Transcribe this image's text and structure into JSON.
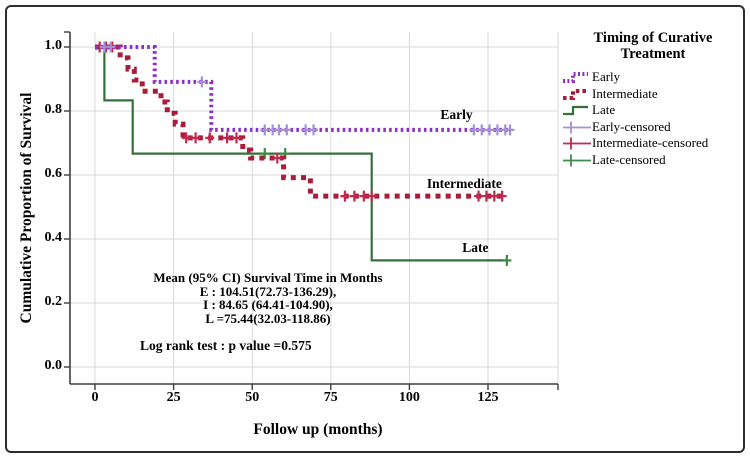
{
  "chart_data": {
    "type": "line",
    "subtype": "kaplan-meier-step",
    "title": "",
    "xlabel": "Follow up (months)",
    "ylabel": "Cumulative Proportion of Survival",
    "xlim": [
      -8,
      147
    ],
    "ylim": [
      -0.05,
      1.05
    ],
    "grid": true,
    "colors": {
      "grid": "#d9d9d9",
      "axis": "#3f3f3f",
      "text": "#000000"
    },
    "x_axis": {
      "ticks": [
        {
          "label": "0",
          "value": 0
        },
        {
          "label": "25",
          "value": 25
        },
        {
          "label": "50",
          "value": 50
        },
        {
          "label": "75",
          "value": 75
        },
        {
          "label": "100",
          "value": 100
        },
        {
          "label": "125",
          "value": 125
        }
      ]
    },
    "y_axis": {
      "ticks": [
        {
          "label": "1.0",
          "value": 1.0
        },
        {
          "label": "0.8",
          "value": 0.8
        },
        {
          "label": "0.6",
          "value": 0.6
        },
        {
          "label": "0.4",
          "value": 0.4
        },
        {
          "label": "0.2",
          "value": 0.2
        },
        {
          "label": "0.0",
          "value": 0.0
        }
      ]
    },
    "series": [
      {
        "name": "Late",
        "style": "solid",
        "color": "#35703a",
        "censor_color": "#3f8a48",
        "label": {
          "x": 121,
          "y": 0.372
        },
        "points": [
          [
            0,
            1.0
          ],
          [
            3,
            1.0
          ],
          [
            3,
            0.833
          ],
          [
            12,
            0.833
          ],
          [
            12,
            0.667
          ],
          [
            88,
            0.667
          ],
          [
            88,
            0.333
          ],
          [
            131,
            0.333
          ]
        ],
        "censored": [
          [
            54,
            0.667
          ],
          [
            60.5,
            0.667
          ],
          [
            131,
            0.333
          ]
        ]
      },
      {
        "name": "Intermediate",
        "style": "dashed",
        "color": "#a81e38",
        "censor_color": "#c22850",
        "label": {
          "x": 117.5,
          "y": 0.572
        },
        "points": [
          [
            0,
            1.0
          ],
          [
            8,
            1.0
          ],
          [
            8,
            0.966
          ],
          [
            10.5,
            0.966
          ],
          [
            10.5,
            0.931
          ],
          [
            12.5,
            0.931
          ],
          [
            12.5,
            0.897
          ],
          [
            15,
            0.897
          ],
          [
            15,
            0.862
          ],
          [
            21,
            0.862
          ],
          [
            21,
            0.828
          ],
          [
            23,
            0.828
          ],
          [
            23,
            0.793
          ],
          [
            25.5,
            0.793
          ],
          [
            25.5,
            0.759
          ],
          [
            28,
            0.759
          ],
          [
            28,
            0.716
          ],
          [
            47,
            0.716
          ],
          [
            47,
            0.678
          ],
          [
            49.5,
            0.678
          ],
          [
            49.5,
            0.653
          ],
          [
            60,
            0.653
          ],
          [
            60,
            0.592
          ],
          [
            68.5,
            0.592
          ],
          [
            68.5,
            0.534
          ],
          [
            130,
            0.534
          ]
        ],
        "censored": [
          [
            1.5,
            1.0
          ],
          [
            3.5,
            1.0
          ],
          [
            5.5,
            1.0
          ],
          [
            29,
            0.716
          ],
          [
            32,
            0.716
          ],
          [
            36.5,
            0.716
          ],
          [
            42,
            0.716
          ],
          [
            45,
            0.716
          ],
          [
            58,
            0.653
          ],
          [
            79.5,
            0.534
          ],
          [
            82.5,
            0.534
          ],
          [
            85.5,
            0.534
          ],
          [
            88,
            0.534
          ],
          [
            122,
            0.534
          ],
          [
            124.5,
            0.534
          ],
          [
            127,
            0.534
          ],
          [
            129.5,
            0.534
          ]
        ]
      },
      {
        "name": "Early",
        "style": "dotted",
        "color": "#8b2fc9",
        "censor_color": "#a58fd8",
        "label": {
          "x": 115,
          "y": 0.787
        },
        "points": [
          [
            0,
            1.0
          ],
          [
            19,
            1.0
          ],
          [
            19,
            0.891
          ],
          [
            37,
            0.891
          ],
          [
            37,
            0.741
          ],
          [
            132,
            0.741
          ]
        ],
        "censored": [
          [
            3,
            1.0
          ],
          [
            5,
            1.0
          ],
          [
            34,
            0.891
          ],
          [
            54,
            0.741
          ],
          [
            56.5,
            0.741
          ],
          [
            58.5,
            0.741
          ],
          [
            61,
            0.741
          ],
          [
            67,
            0.741
          ],
          [
            69.5,
            0.741
          ],
          [
            120.5,
            0.741
          ],
          [
            123,
            0.741
          ],
          [
            125.5,
            0.741
          ],
          [
            128,
            0.741
          ],
          [
            130.5,
            0.741
          ],
          [
            132,
            0.741
          ]
        ]
      }
    ],
    "legend": {
      "title_line1": "Timing of Curative",
      "title_line2": "Treatment",
      "items": [
        {
          "label": "Early",
          "sample": "dotted",
          "color": "#8b2fc9"
        },
        {
          "label": "Intermediate",
          "sample": "dashed",
          "color": "#a81e38"
        },
        {
          "label": "Late",
          "sample": "solid",
          "color": "#35703a"
        },
        {
          "label": "Early-censored",
          "sample": "plus",
          "color": "#a58fd8"
        },
        {
          "label": "Intermediate-censored",
          "sample": "plus",
          "color": "#c22850"
        },
        {
          "label": "Late-censored",
          "sample": "plus",
          "color": "#3f8a48"
        }
      ]
    },
    "annotation": {
      "line1": "Mean (95% CI) Survival Time in Months",
      "line2": "E : 104.51(72.73-136.29),",
      "line3": "I : 84.65 (64.41-104.90),",
      "line4": "L =75.44(32.03-118.86)",
      "logrank": "Log rank test : p value =0.575"
    }
  }
}
